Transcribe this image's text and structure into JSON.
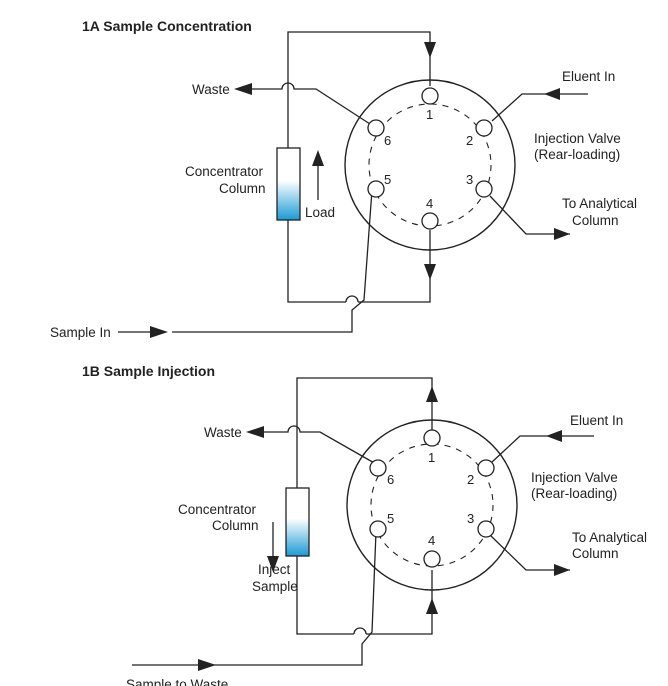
{
  "panel_a": {
    "title": "1A Sample Concentration",
    "waste": "Waste",
    "eluent_in": "Eluent In",
    "valve_line1": "Injection Valve",
    "valve_line2": "(Rear-loading)",
    "analytical_line1": "To Analytical",
    "analytical_line2": "Column",
    "column_line1": "Concentrator",
    "column_line2": "Column",
    "flow_label": "Load",
    "sample_label": "Sample In",
    "ports": [
      "1",
      "2",
      "3",
      "4",
      "5",
      "6"
    ]
  },
  "panel_b": {
    "title": "1B Sample Injection",
    "waste": "Waste",
    "eluent_in": "Eluent In",
    "valve_line1": "Injection Valve",
    "valve_line2": "(Rear-loading)",
    "analytical_line1": "To Analytical",
    "analytical_line2": "Column",
    "column_line1": "Concentrator",
    "column_line2": "Column",
    "flow_line1": "Inject",
    "flow_line2": "Sample",
    "sample_label": "Sample to Waste",
    "ports": [
      "1",
      "2",
      "3",
      "4",
      "5",
      "6"
    ]
  },
  "colors": {
    "line": "#222222",
    "column_fill_top": "#ffffff",
    "column_fill_bottom": "#1a9ad6"
  }
}
